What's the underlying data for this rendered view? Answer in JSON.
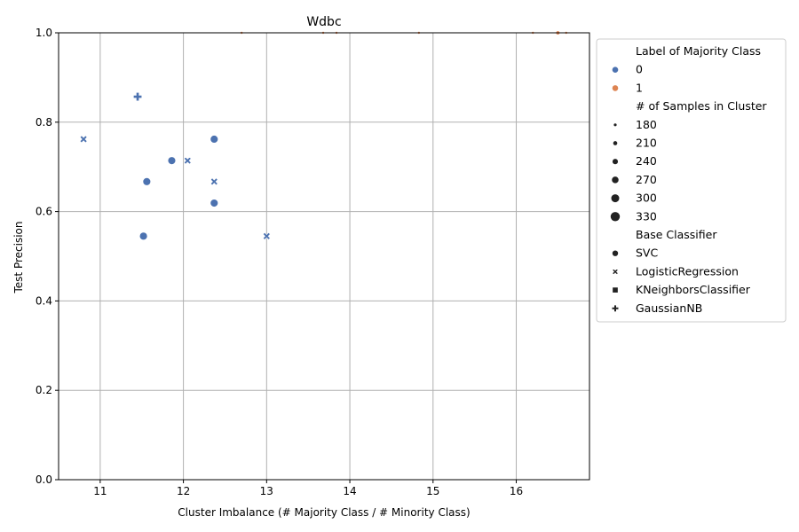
{
  "chart_data": {
    "type": "scatter",
    "title": "Wdbc",
    "xlabel": "Cluster Imbalance (# Majority Class / # Minority Class)",
    "ylabel": "Test Precision",
    "xlim": [
      10.5,
      16.88
    ],
    "ylim": [
      0.0,
      1.0
    ],
    "xticks": [
      11,
      12,
      13,
      14,
      15,
      16
    ],
    "yticks": [
      0.0,
      0.2,
      0.4,
      0.6,
      0.8,
      1.0
    ],
    "grid": true,
    "legend_position": "outside right",
    "legend": {
      "hue_title": "Label of Majority Class",
      "hue": [
        {
          "label": "0",
          "color": "#4c72b0"
        },
        {
          "label": "1",
          "color": "#dd8452"
        }
      ],
      "size_title": "# of Samples in Cluster",
      "sizes": [
        180,
        210,
        240,
        270,
        300,
        330
      ],
      "style_title": "Base Classifier",
      "styles": [
        {
          "label": "SVC",
          "marker": "circle"
        },
        {
          "label": "LogisticRegression",
          "marker": "x"
        },
        {
          "label": "KNeighborsClassifier",
          "marker": "square"
        },
        {
          "label": "GaussianNB",
          "marker": "plus"
        }
      ]
    },
    "points": [
      {
        "x": 10.8,
        "y": 0.762,
        "label": 0,
        "size": 300,
        "classifier": "LogisticRegression"
      },
      {
        "x": 11.45,
        "y": 0.857,
        "label": 0,
        "size": 300,
        "classifier": "GaussianNB"
      },
      {
        "x": 11.52,
        "y": 0.545,
        "label": 0,
        "size": 300,
        "classifier": "SVC"
      },
      {
        "x": 11.56,
        "y": 0.667,
        "label": 0,
        "size": 300,
        "classifier": "SVC"
      },
      {
        "x": 11.86,
        "y": 0.714,
        "label": 0,
        "size": 300,
        "classifier": "SVC"
      },
      {
        "x": 12.05,
        "y": 0.714,
        "label": 0,
        "size": 300,
        "classifier": "LogisticRegression"
      },
      {
        "x": 12.37,
        "y": 0.762,
        "label": 0,
        "size": 300,
        "classifier": "SVC"
      },
      {
        "x": 12.37,
        "y": 0.667,
        "label": 0,
        "size": 300,
        "classifier": "LogisticRegression"
      },
      {
        "x": 12.37,
        "y": 0.619,
        "label": 0,
        "size": 300,
        "classifier": "SVC"
      },
      {
        "x": 13.0,
        "y": 0.545,
        "label": 0,
        "size": 300,
        "classifier": "LogisticRegression"
      },
      {
        "x": 12.7,
        "y": 1.0,
        "label": 1,
        "size": 180,
        "classifier": "SVC"
      },
      {
        "x": 13.68,
        "y": 1.0,
        "label": 1,
        "size": 180,
        "classifier": "SVC"
      },
      {
        "x": 13.84,
        "y": 1.0,
        "label": 1,
        "size": 180,
        "classifier": "SVC"
      },
      {
        "x": 14.83,
        "y": 1.0,
        "label": 1,
        "size": 180,
        "classifier": "SVC"
      },
      {
        "x": 16.2,
        "y": 1.0,
        "label": 1,
        "size": 180,
        "classifier": "SVC"
      },
      {
        "x": 16.5,
        "y": 1.0,
        "label": 1,
        "size": 210,
        "classifier": "SVC"
      },
      {
        "x": 16.6,
        "y": 1.0,
        "label": 1,
        "size": 180,
        "classifier": "SVC"
      }
    ]
  }
}
